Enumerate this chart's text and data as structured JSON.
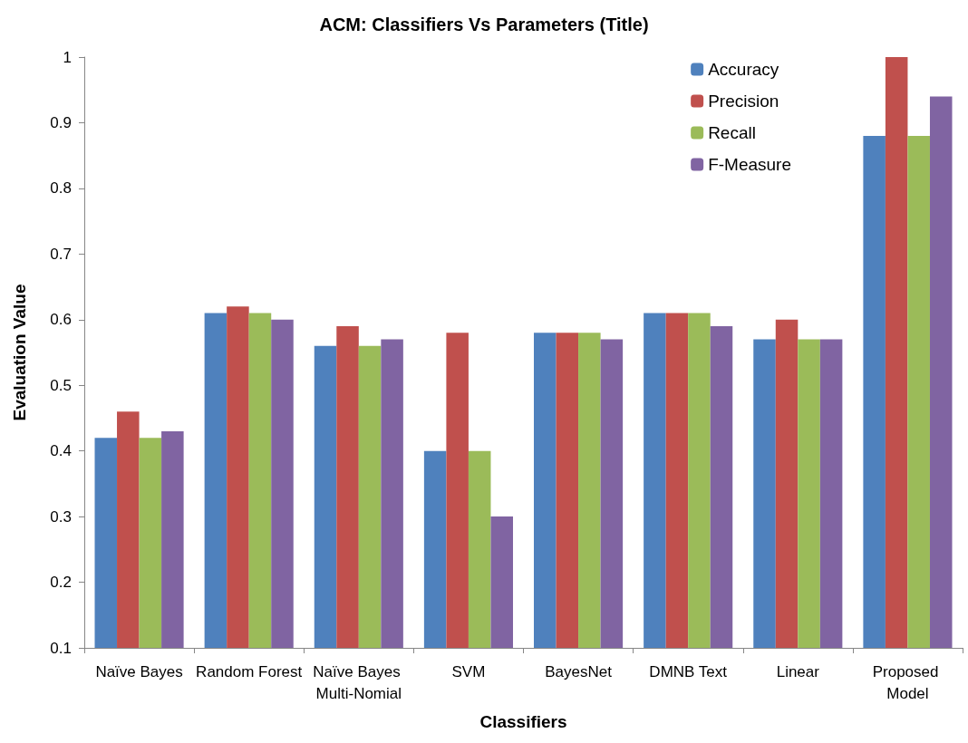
{
  "chart_data": {
    "type": "bar",
    "title": "ACM: Classifiers Vs Parameters (Title)",
    "xlabel": "Classifiers",
    "ylabel": "Evaluation Value",
    "categories": [
      "Naïve Bayes",
      "Random Forest",
      "Naïve Bayes Multi-Nomial",
      "SVM",
      "BayesNet",
      "DMNB Text",
      "Linear",
      "Proposed Model"
    ],
    "series": [
      {
        "name": "Accuracy",
        "color": "#4f81bd",
        "values": [
          0.42,
          0.61,
          0.56,
          0.4,
          0.58,
          0.61,
          0.57,
          0.88
        ]
      },
      {
        "name": "Precision",
        "color": "#c0504d",
        "values": [
          0.46,
          0.62,
          0.59,
          0.58,
          0.58,
          0.61,
          0.6,
          1.0
        ]
      },
      {
        "name": "Recall",
        "color": "#9bbb59",
        "values": [
          0.42,
          0.61,
          0.56,
          0.4,
          0.58,
          0.61,
          0.57,
          0.88
        ]
      },
      {
        "name": "F-Measure",
        "color": "#8064a2",
        "values": [
          0.43,
          0.6,
          0.57,
          0.3,
          0.57,
          0.59,
          0.57,
          0.94
        ]
      }
    ],
    "ylim": [
      0.1,
      1
    ],
    "yticks": [
      0.1,
      0.2,
      0.3,
      0.4,
      0.5,
      0.6,
      0.7,
      0.8,
      0.9,
      1
    ],
    "grid": false,
    "legend": "top right"
  }
}
